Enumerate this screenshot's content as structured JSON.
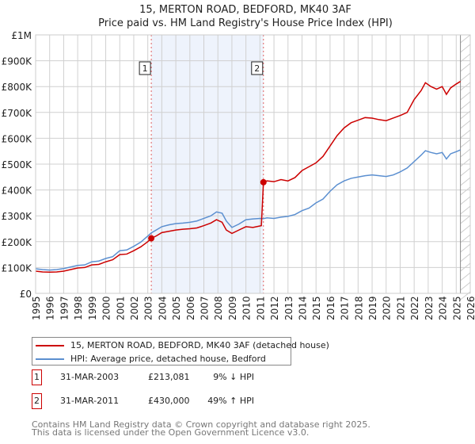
{
  "chart_data": {
    "type": "line",
    "title": "15, MERTON ROAD, BEDFORD, MK40 3AF",
    "subtitle": "Price paid vs. HM Land Registry's House Price Index (HPI)",
    "xlim": [
      1995,
      2026
    ],
    "ylim": [
      0,
      1000000
    ],
    "x_ticks": [
      "1995",
      "1996",
      "1997",
      "1998",
      "1999",
      "2000",
      "2001",
      "2002",
      "2003",
      "2004",
      "2005",
      "2006",
      "2007",
      "2008",
      "2009",
      "2010",
      "2011",
      "2012",
      "2013",
      "2014",
      "2015",
      "2016",
      "2017",
      "2018",
      "2019",
      "2020",
      "2021",
      "2022",
      "2023",
      "2024",
      "2025",
      "2026"
    ],
    "y_ticks": [
      {
        "v": 0,
        "label": "£0"
      },
      {
        "v": 100000,
        "label": "£100K"
      },
      {
        "v": 200000,
        "label": "£200K"
      },
      {
        "v": 300000,
        "label": "£300K"
      },
      {
        "v": 400000,
        "label": "£400K"
      },
      {
        "v": 500000,
        "label": "£500K"
      },
      {
        "v": 600000,
        "label": "£600K"
      },
      {
        "v": 700000,
        "label": "£700K"
      },
      {
        "v": 800000,
        "label": "£800K"
      },
      {
        "v": 900000,
        "label": "£900K"
      },
      {
        "v": 1000000,
        "label": "£1M"
      }
    ],
    "grid": true,
    "shaded_range": [
      2003.25,
      2011.25
    ],
    "forecast_hatch_from": 2025.3,
    "series": [
      {
        "name": "15, MERTON ROAD, BEDFORD, MK40 3AF (detached house)",
        "color": "#cc0000",
        "points": [
          [
            1995,
            86
          ],
          [
            1995.5,
            83
          ],
          [
            1996,
            82
          ],
          [
            1996.5,
            83
          ],
          [
            1997,
            86
          ],
          [
            1997.5,
            92
          ],
          [
            1998,
            98
          ],
          [
            1998.5,
            100
          ],
          [
            1999,
            110
          ],
          [
            1999.5,
            112
          ],
          [
            2000,
            122
          ],
          [
            2000.5,
            130
          ],
          [
            2001,
            150
          ],
          [
            2001.5,
            152
          ],
          [
            2002,
            165
          ],
          [
            2002.5,
            180
          ],
          [
            2003,
            200
          ],
          [
            2003.25,
            213
          ],
          [
            2003.6,
            222
          ],
          [
            2004,
            235
          ],
          [
            2004.5,
            240
          ],
          [
            2005,
            245
          ],
          [
            2005.5,
            248
          ],
          [
            2006,
            250
          ],
          [
            2006.5,
            253
          ],
          [
            2007,
            262
          ],
          [
            2007.5,
            272
          ],
          [
            2007.9,
            285
          ],
          [
            2008.3,
            275
          ],
          [
            2008.6,
            245
          ],
          [
            2009,
            232
          ],
          [
            2009.5,
            245
          ],
          [
            2010,
            258
          ],
          [
            2010.5,
            255
          ],
          [
            2011.1,
            262
          ],
          [
            2011.25,
            430
          ],
          [
            2011.5,
            435
          ],
          [
            2012,
            432
          ],
          [
            2012.5,
            440
          ],
          [
            2013,
            435
          ],
          [
            2013.5,
            448
          ],
          [
            2014,
            475
          ],
          [
            2014.5,
            490
          ],
          [
            2015,
            505
          ],
          [
            2015.5,
            530
          ],
          [
            2016,
            570
          ],
          [
            2016.5,
            610
          ],
          [
            2017,
            640
          ],
          [
            2017.5,
            660
          ],
          [
            2018,
            670
          ],
          [
            2018.5,
            680
          ],
          [
            2019,
            678
          ],
          [
            2019.5,
            672
          ],
          [
            2020,
            668
          ],
          [
            2020.5,
            678
          ],
          [
            2021,
            688
          ],
          [
            2021.5,
            700
          ],
          [
            2022,
            750
          ],
          [
            2022.5,
            785
          ],
          [
            2022.8,
            815
          ],
          [
            2023.2,
            800
          ],
          [
            2023.6,
            790
          ],
          [
            2024,
            800
          ],
          [
            2024.3,
            770
          ],
          [
            2024.6,
            795
          ],
          [
            2025,
            810
          ],
          [
            2025.3,
            820
          ]
        ]
      },
      {
        "name": "HPI: Average price, detached house, Bedford",
        "color": "#5b8fd0",
        "points": [
          [
            1995,
            95
          ],
          [
            1995.5,
            92
          ],
          [
            1996,
            90
          ],
          [
            1996.5,
            92
          ],
          [
            1997,
            96
          ],
          [
            1997.5,
            102
          ],
          [
            1998,
            108
          ],
          [
            1998.5,
            110
          ],
          [
            1999,
            122
          ],
          [
            1999.5,
            125
          ],
          [
            2000,
            135
          ],
          [
            2000.5,
            142
          ],
          [
            2001,
            165
          ],
          [
            2001.5,
            168
          ],
          [
            2002,
            182
          ],
          [
            2002.5,
            198
          ],
          [
            2003,
            222
          ],
          [
            2003.25,
            234
          ],
          [
            2003.6,
            245
          ],
          [
            2004,
            258
          ],
          [
            2004.5,
            265
          ],
          [
            2005,
            270
          ],
          [
            2005.5,
            272
          ],
          [
            2006,
            275
          ],
          [
            2006.5,
            280
          ],
          [
            2007,
            290
          ],
          [
            2007.5,
            300
          ],
          [
            2007.9,
            315
          ],
          [
            2008.3,
            310
          ],
          [
            2008.6,
            280
          ],
          [
            2009,
            255
          ],
          [
            2009.5,
            268
          ],
          [
            2010,
            285
          ],
          [
            2010.5,
            288
          ],
          [
            2011,
            290
          ],
          [
            2011.25,
            289
          ],
          [
            2011.5,
            292
          ],
          [
            2012,
            290
          ],
          [
            2012.5,
            295
          ],
          [
            2013,
            298
          ],
          [
            2013.5,
            305
          ],
          [
            2014,
            320
          ],
          [
            2014.5,
            330
          ],
          [
            2015,
            350
          ],
          [
            2015.5,
            365
          ],
          [
            2016,
            395
          ],
          [
            2016.5,
            420
          ],
          [
            2017,
            435
          ],
          [
            2017.5,
            445
          ],
          [
            2018,
            450
          ],
          [
            2018.5,
            455
          ],
          [
            2019,
            458
          ],
          [
            2019.5,
            455
          ],
          [
            2020,
            452
          ],
          [
            2020.5,
            458
          ],
          [
            2021,
            470
          ],
          [
            2021.5,
            485
          ],
          [
            2022,
            510
          ],
          [
            2022.5,
            535
          ],
          [
            2022.8,
            552
          ],
          [
            2023.2,
            545
          ],
          [
            2023.6,
            540
          ],
          [
            2024,
            545
          ],
          [
            2024.3,
            520
          ],
          [
            2024.6,
            540
          ],
          [
            2025,
            548
          ],
          [
            2025.3,
            555
          ]
        ]
      }
    ],
    "annotations": [
      {
        "label": "1",
        "x": 2003.25,
        "y": 213081
      },
      {
        "label": "2",
        "x": 2011.25,
        "y": 430000
      }
    ]
  },
  "transactions": [
    {
      "num": "1",
      "date": "31-MAR-2003",
      "price": "£213,081",
      "hpi": "9% ↓ HPI"
    },
    {
      "num": "2",
      "date": "31-MAR-2011",
      "price": "£430,000",
      "hpi": "49% ↑ HPI"
    }
  ],
  "footer": {
    "line1": "Contains HM Land Registry data © Crown copyright and database right 2025.",
    "line2": "This data is licensed under the Open Government Licence v3.0."
  }
}
